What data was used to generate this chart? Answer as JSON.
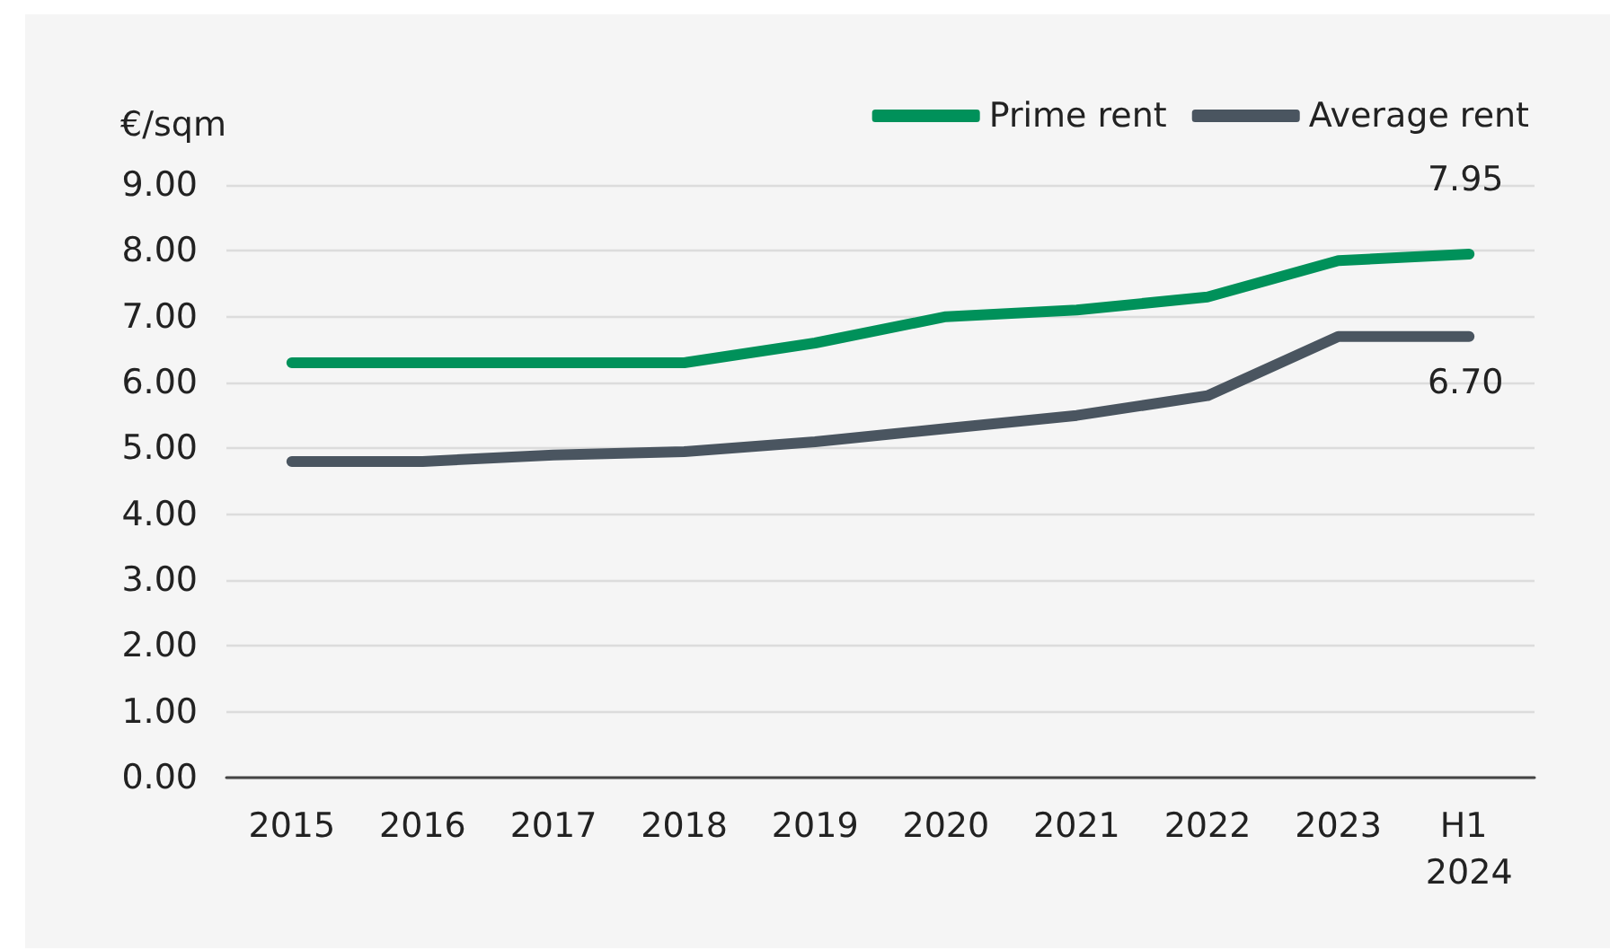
{
  "chart_data": {
    "type": "line",
    "ylabel": "€/sqm",
    "categories": [
      "2015",
      "2016",
      "2017",
      "2018",
      "2019",
      "2020",
      "2021",
      "2022",
      "2023",
      "H1 2024"
    ],
    "series": [
      {
        "name": "Prime rent",
        "color": "#00915a",
        "values": [
          6.3,
          6.3,
          6.3,
          6.3,
          6.6,
          7.0,
          7.1,
          7.3,
          7.85,
          7.95
        ],
        "value_labels": [
          null,
          null,
          null,
          null,
          null,
          null,
          null,
          null,
          null,
          "7.95"
        ]
      },
      {
        "name": "Average rent",
        "color": "#4a5560",
        "values": [
          4.8,
          4.8,
          4.9,
          4.95,
          5.1,
          5.3,
          5.5,
          5.8,
          6.7,
          6.7
        ],
        "value_labels": [
          null,
          null,
          null,
          null,
          null,
          null,
          null,
          null,
          null,
          "6.70"
        ]
      }
    ],
    "ylim": [
      0,
      9
    ],
    "yticks": [
      {
        "value": 0,
        "label": "0.00"
      },
      {
        "value": 1,
        "label": "1.00"
      },
      {
        "value": 2,
        "label": "2.00"
      },
      {
        "value": 3,
        "label": "3.00"
      },
      {
        "value": 4,
        "label": "4.00"
      },
      {
        "value": 5,
        "label": "5.00"
      },
      {
        "value": 6,
        "label": "6.00"
      },
      {
        "value": 7,
        "label": "7.00"
      },
      {
        "value": 8,
        "label": "8.00"
      },
      {
        "value": 9,
        "label": "9.00"
      }
    ],
    "grid": "y",
    "legend": "top right",
    "marker": "none",
    "line_style": "solid"
  }
}
